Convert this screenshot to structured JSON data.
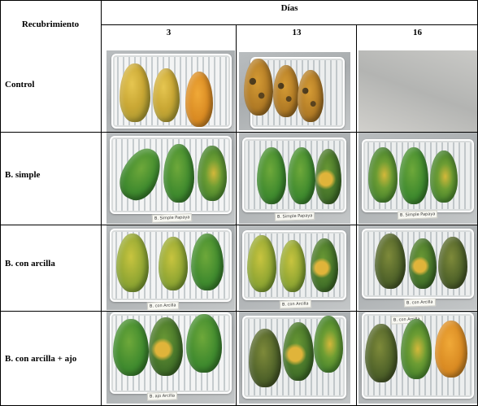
{
  "table": {
    "coating_header": "Recubrimiento",
    "days_header": "Días",
    "days": [
      "3",
      "13",
      "16"
    ],
    "rows": [
      {
        "label": "Control"
      },
      {
        "label": "B. simple"
      },
      {
        "label": "B. con arcilla"
      },
      {
        "label": "B. con arcilla + ajo"
      }
    ]
  },
  "tray_labels": {
    "simple_3": "B. Simple Papaya",
    "simple_13": "B. Simple Papaya",
    "simple_16": "B. Simple Papaya",
    "arcilla_3": "B. con Arcilla",
    "arcilla_13": "B. con Arcilla",
    "arcilla_16": "B. con Arcilla",
    "ajo_3": "B. ajo Arcilla",
    "ajo_16": "B. con Arcilla"
  }
}
